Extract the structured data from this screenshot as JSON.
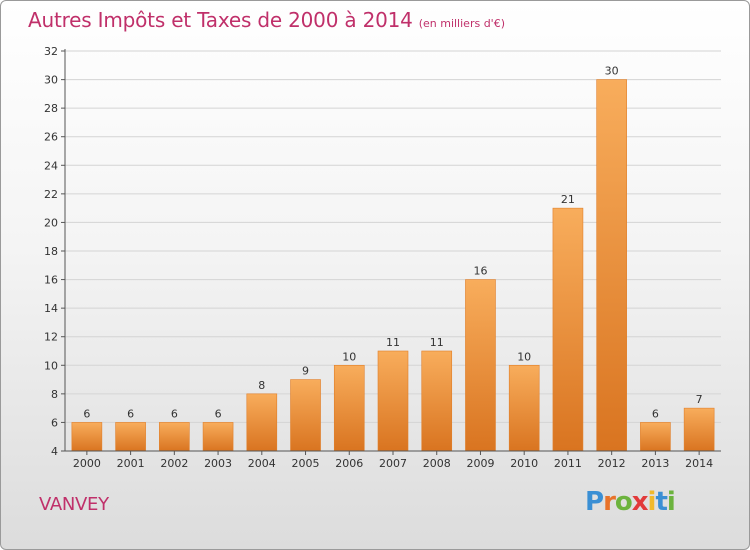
{
  "title": "Autres Impôts et Taxes de 2000 à 2014",
  "subtitle": "(en milliers d'€)",
  "commune": "VANVEY",
  "logo": {
    "letters": [
      "P",
      "r",
      "o",
      "x",
      "i",
      "t",
      "i"
    ],
    "colors": [
      "#3a8fd4",
      "#e8732a",
      "#6cb33e",
      "#e23a3a",
      "#f0b92c",
      "#3a8fd4",
      "#6cb33e"
    ]
  },
  "colors": {
    "bar": "#f2933a",
    "bar_light": "#f8ad5c",
    "bar_dark": "#d97420",
    "text": "#c0306a"
  },
  "chart_data": {
    "type": "bar",
    "categories": [
      "2000",
      "2001",
      "2002",
      "2003",
      "2004",
      "2005",
      "2006",
      "2007",
      "2008",
      "2009",
      "2010",
      "2011",
      "2012",
      "2013",
      "2014"
    ],
    "values": [
      6,
      6,
      6,
      6,
      8,
      9,
      10,
      11,
      11,
      16,
      10,
      21,
      30,
      6,
      7
    ],
    "data_labels": [
      "6",
      "6",
      "6",
      "6",
      "8",
      "9",
      "10",
      "11",
      "11",
      "16",
      "10",
      "21",
      "30",
      "6",
      "7"
    ],
    "ylim": [
      4,
      32
    ],
    "yticks": [
      4,
      6,
      8,
      10,
      12,
      14,
      16,
      18,
      20,
      22,
      24,
      26,
      28,
      30,
      32
    ],
    "xlabel": "",
    "ylabel": "",
    "grid": true
  }
}
